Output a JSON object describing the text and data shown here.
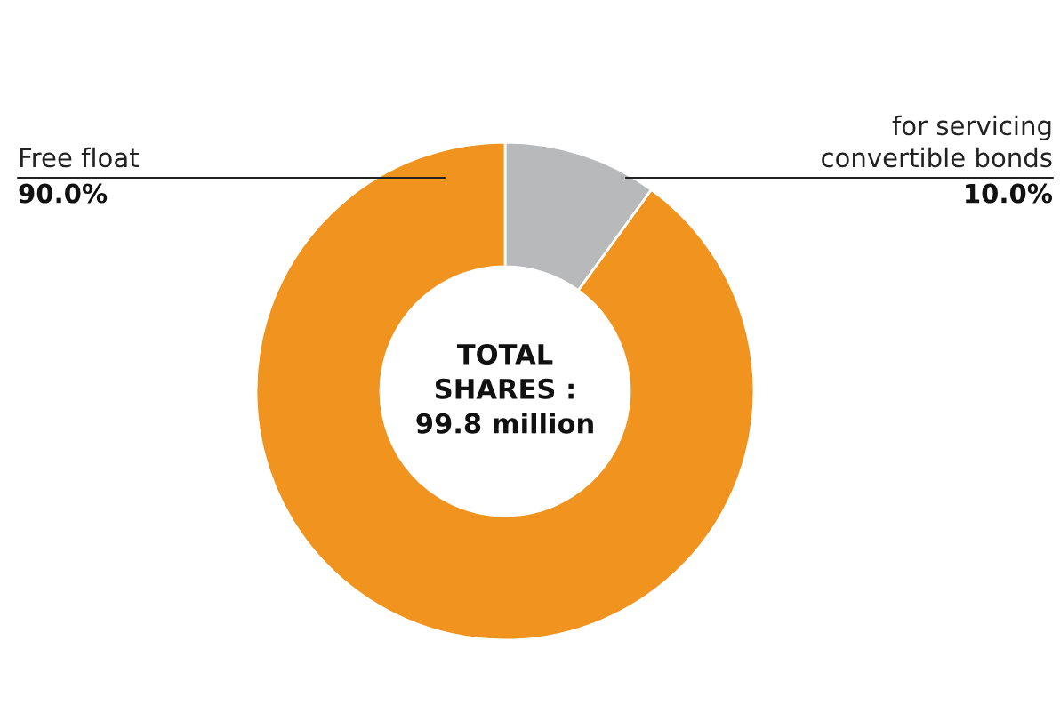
{
  "chart_data": {
    "type": "donut",
    "categories": [
      "for servicing\nconvertible bonds",
      "Free float"
    ],
    "values": [
      10,
      90
    ],
    "value_labels": [
      "10.0%",
      "90.0%"
    ],
    "colors": [
      "#b8b9bb",
      "#f0931f"
    ],
    "annotations": [
      "TOTAL\nSHARES :\n99.8 million"
    ],
    "legend": false
  }
}
